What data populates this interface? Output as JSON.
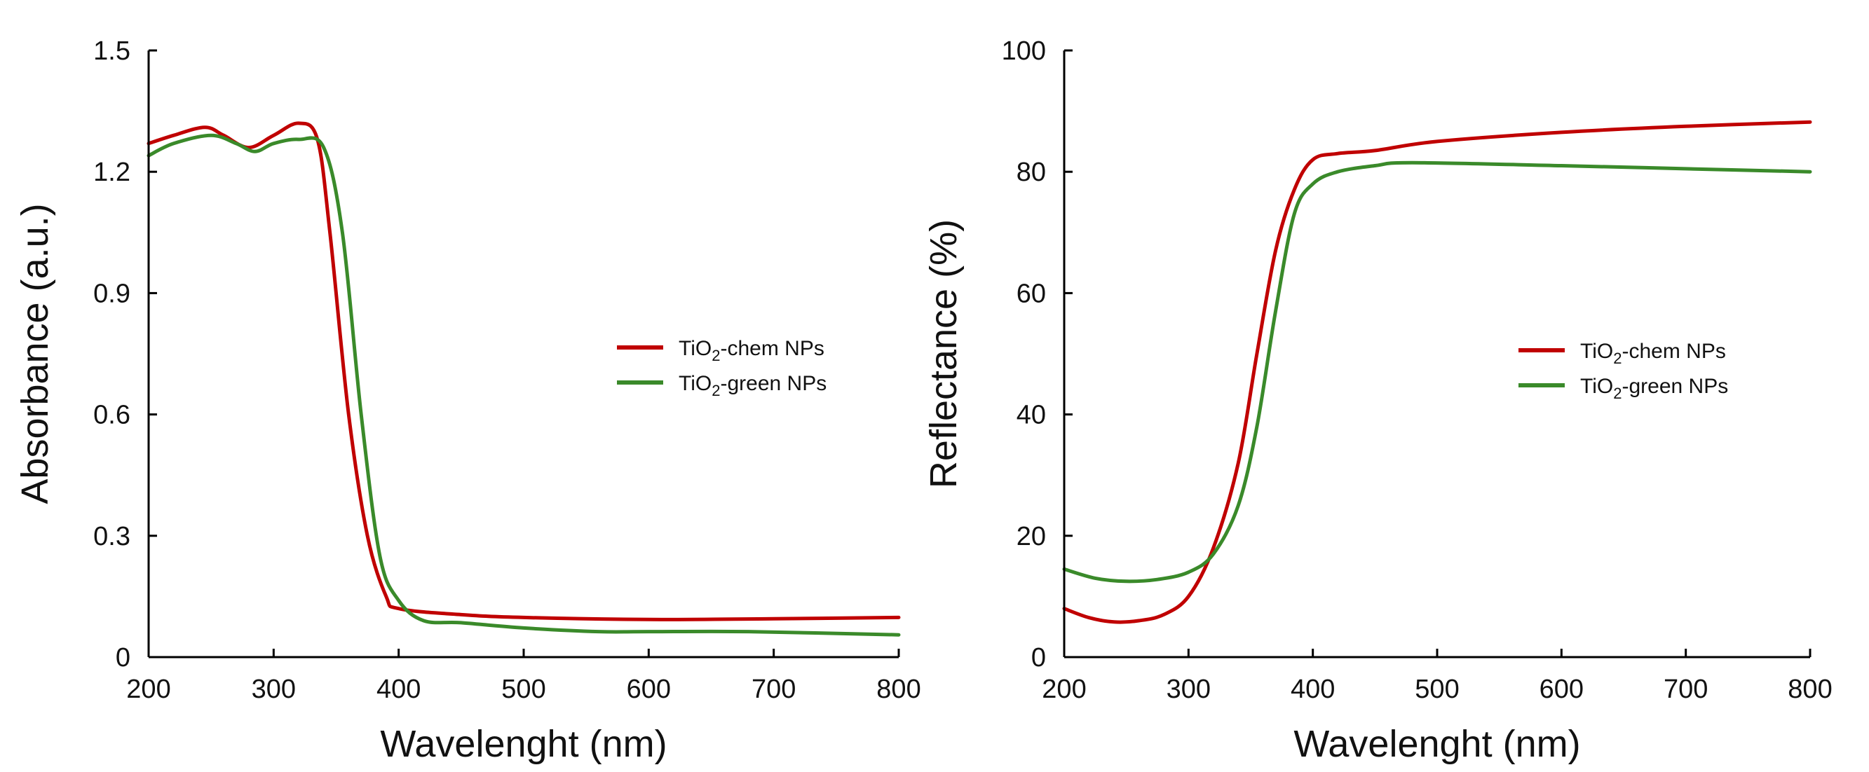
{
  "chart_data": [
    {
      "type": "line",
      "title": "",
      "xlabel": "Wavelenght  (nm)",
      "ylabel": "Absorbance  (a.u.)",
      "xlim": [
        200,
        800
      ],
      "ylim": [
        0,
        1.5
      ],
      "x_ticks": [
        200,
        300,
        400,
        500,
        600,
        700,
        800
      ],
      "x_tick_labels": [
        "200",
        "300",
        "400",
        "500",
        "600",
        "700",
        "800"
      ],
      "y_ticks": [
        0,
        0.3,
        0.6,
        0.9,
        1.2,
        1.5
      ],
      "y_tick_labels": [
        "0",
        "0.3",
        "0.6",
        "0.9",
        "1.2",
        "1.5"
      ],
      "legend_position": "center-right",
      "series": [
        {
          "name": "TiO2-chem NPs",
          "legend_main": "TiO",
          "legend_sub": "2",
          "legend_rest": "-chem NPs",
          "color": "#c00000",
          "points": [
            [
              200,
              1.27
            ],
            [
              220,
              1.29
            ],
            [
              245,
              1.31
            ],
            [
              260,
              1.29
            ],
            [
              280,
              1.26
            ],
            [
              300,
              1.29
            ],
            [
              320,
              1.32
            ],
            [
              335,
              1.28
            ],
            [
              345,
              1.05
            ],
            [
              360,
              0.6
            ],
            [
              375,
              0.3
            ],
            [
              390,
              0.15
            ],
            [
              400,
              0.12
            ],
            [
              450,
              0.105
            ],
            [
              500,
              0.098
            ],
            [
              600,
              0.093
            ],
            [
              700,
              0.095
            ],
            [
              800,
              0.098
            ]
          ]
        },
        {
          "name": "TiO2-green NPs",
          "legend_main": "TiO",
          "legend_sub": "2",
          "legend_rest": "-green NPs",
          "color": "#3a8a2a",
          "points": [
            [
              200,
              1.24
            ],
            [
              220,
              1.27
            ],
            [
              250,
              1.29
            ],
            [
              270,
              1.27
            ],
            [
              285,
              1.25
            ],
            [
              300,
              1.27
            ],
            [
              320,
              1.28
            ],
            [
              340,
              1.26
            ],
            [
              355,
              1.05
            ],
            [
              370,
              0.6
            ],
            [
              385,
              0.25
            ],
            [
              400,
              0.14
            ],
            [
              420,
              0.09
            ],
            [
              450,
              0.085
            ],
            [
              500,
              0.072
            ],
            [
              560,
              0.063
            ],
            [
              600,
              0.063
            ],
            [
              680,
              0.063
            ],
            [
              800,
              0.055
            ]
          ]
        }
      ]
    },
    {
      "type": "line",
      "title": "",
      "xlabel": "Wavelenght  (nm)",
      "ylabel": "Reflectance  (%)",
      "xlim": [
        200,
        800
      ],
      "ylim": [
        0,
        100
      ],
      "x_ticks": [
        200,
        300,
        400,
        500,
        600,
        700,
        800
      ],
      "x_tick_labels": [
        "200",
        "300",
        "400",
        "500",
        "600",
        "700",
        "800"
      ],
      "y_ticks": [
        0,
        20,
        40,
        60,
        80,
        100
      ],
      "y_tick_labels": [
        "0",
        "20",
        "40",
        "60",
        "80",
        "100"
      ],
      "legend_position": "center-right",
      "series": [
        {
          "name": "TiO2-chem NPs",
          "legend_main": "TiO",
          "legend_sub": "2",
          "legend_rest": "-chem NPs",
          "color": "#c00000",
          "points": [
            [
              200,
              8
            ],
            [
              220,
              6.5
            ],
            [
              240,
              5.8
            ],
            [
              260,
              6
            ],
            [
              280,
              7
            ],
            [
              300,
              10
            ],
            [
              320,
              18
            ],
            [
              340,
              32
            ],
            [
              355,
              50
            ],
            [
              370,
              67
            ],
            [
              385,
              77
            ],
            [
              400,
              82
            ],
            [
              420,
              83
            ],
            [
              450,
              83.5
            ],
            [
              500,
              85
            ],
            [
              600,
              86.5
            ],
            [
              700,
              87.5
            ],
            [
              800,
              88.2
            ]
          ]
        },
        {
          "name": "TiO2-green NPs",
          "legend_main": "TiO",
          "legend_sub": "2",
          "legend_rest": "-green NPs",
          "color": "#3a8a2a",
          "points": [
            [
              200,
              14.5
            ],
            [
              225,
              13
            ],
            [
              250,
              12.5
            ],
            [
              275,
              12.8
            ],
            [
              300,
              14
            ],
            [
              320,
              17
            ],
            [
              340,
              25
            ],
            [
              355,
              38
            ],
            [
              370,
              57
            ],
            [
              385,
              73
            ],
            [
              400,
              78
            ],
            [
              420,
              80
            ],
            [
              450,
              81
            ],
            [
              480,
              81.5
            ],
            [
              600,
              81
            ],
            [
              700,
              80.5
            ],
            [
              800,
              80
            ]
          ]
        }
      ]
    }
  ]
}
